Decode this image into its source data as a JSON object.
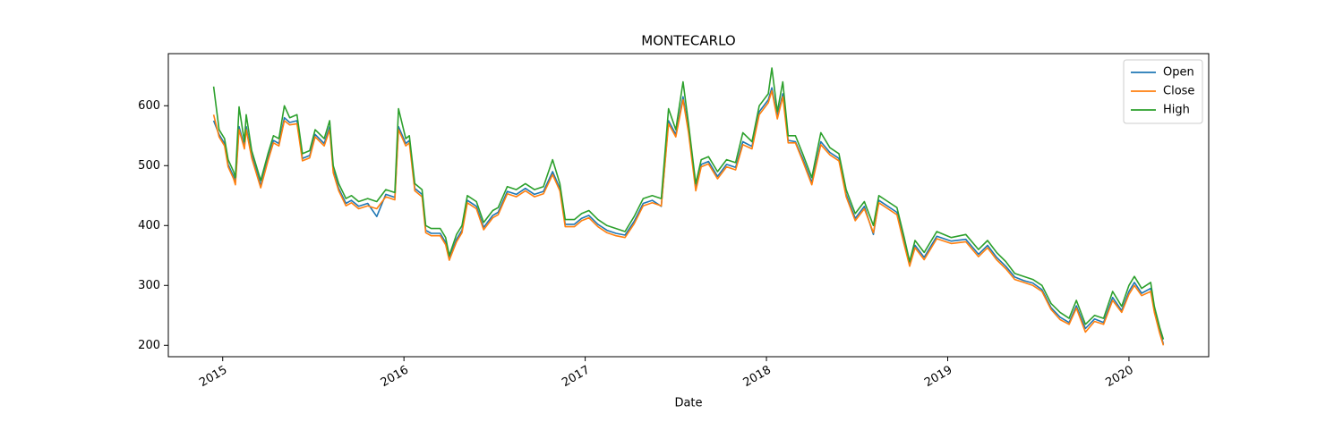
{
  "chart_data": {
    "type": "line",
    "title": "MONTECARLO",
    "xlabel": "Date",
    "x": [
      2014.95,
      2014.98,
      2015.01,
      2015.03,
      2015.06,
      2015.07,
      2015.09,
      2015.12,
      2015.13,
      2015.16,
      2015.21,
      2015.25,
      2015.28,
      2015.31,
      2015.34,
      2015.37,
      2015.41,
      2015.44,
      2015.48,
      2015.51,
      2015.56,
      2015.59,
      2015.61,
      2015.64,
      2015.68,
      2015.71,
      2015.75,
      2015.8,
      2015.85,
      2015.9,
      2015.95,
      2015.97,
      2016.01,
      2016.03,
      2016.06,
      2016.1,
      2016.12,
      2016.15,
      2016.2,
      2016.23,
      2016.25,
      2016.29,
      2016.32,
      2016.35,
      2016.4,
      2016.44,
      2016.49,
      2016.52,
      2016.57,
      2016.62,
      2016.67,
      2016.72,
      2016.77,
      2016.82,
      2016.86,
      2016.89,
      2016.94,
      2016.98,
      2017.02,
      2017.07,
      2017.12,
      2017.17,
      2017.22,
      2017.27,
      2017.32,
      2017.37,
      2017.42,
      2017.46,
      2017.5,
      2017.54,
      2017.57,
      2017.61,
      2017.64,
      2017.68,
      2017.73,
      2017.78,
      2017.83,
      2017.87,
      2017.92,
      2017.96,
      2018.01,
      2018.03,
      2018.06,
      2018.09,
      2018.12,
      2018.16,
      2018.2,
      2018.25,
      2018.3,
      2018.35,
      2018.4,
      2018.44,
      2018.49,
      2018.54,
      2018.59,
      2018.62,
      2018.67,
      2018.72,
      2018.76,
      2018.79,
      2018.82,
      2018.87,
      2018.94,
      2019.02,
      2019.1,
      2019.17,
      2019.22,
      2019.27,
      2019.32,
      2019.37,
      2019.42,
      2019.47,
      2019.52,
      2019.57,
      2019.62,
      2019.67,
      2019.71,
      2019.76,
      2019.81,
      2019.86,
      2019.91,
      2019.96,
      2020.0,
      2020.03,
      2020.07,
      2020.12,
      2020.14,
      2020.17,
      2020.19
    ],
    "series": [
      {
        "name": "Open",
        "color": "#1f77b4",
        "values": [
          575,
          552,
          537,
          502,
          482,
          472,
          565,
          532,
          565,
          517,
          467,
          512,
          542,
          537,
          580,
          572,
          575,
          512,
          517,
          552,
          537,
          565,
          492,
          462,
          437,
          442,
          432,
          437,
          415,
          452,
          447,
          565,
          537,
          542,
          462,
          452,
          392,
          387,
          387,
          372,
          345,
          377,
          392,
          442,
          432,
          397,
          417,
          422,
          457,
          452,
          462,
          452,
          457,
          490,
          462,
          402,
          402,
          412,
          417,
          402,
          392,
          387,
          384,
          407,
          437,
          442,
          432,
          575,
          552,
          615,
          560,
          462,
          502,
          507,
          482,
          502,
          497,
          540,
          532,
          590,
          610,
          630,
          582,
          620,
          542,
          540,
          512,
          472,
          540,
          522,
          512,
          452,
          412,
          432,
          385,
          442,
          432,
          422,
          372,
          335,
          367,
          347,
          382,
          374,
          377,
          352,
          367,
          347,
          332,
          314,
          308,
          304,
          293,
          263,
          247,
          238,
          266,
          228,
          244,
          238,
          280,
          258,
          290,
          305,
          287,
          295,
          258,
          224,
          202
        ]
      },
      {
        "name": "Close",
        "color": "#ff7f0e",
        "values": [
          585,
          548,
          533,
          498,
          478,
          468,
          560,
          528,
          560,
          513,
          463,
          508,
          538,
          533,
          575,
          568,
          570,
          508,
          513,
          548,
          533,
          560,
          488,
          458,
          433,
          438,
          428,
          433,
          428,
          448,
          443,
          560,
          533,
          538,
          458,
          448,
          388,
          383,
          383,
          368,
          342,
          373,
          388,
          438,
          428,
          393,
          413,
          418,
          453,
          448,
          458,
          448,
          453,
          485,
          458,
          398,
          398,
          408,
          413,
          398,
          388,
          383,
          380,
          403,
          433,
          438,
          433,
          570,
          548,
          610,
          555,
          458,
          498,
          503,
          478,
          498,
          493,
          535,
          528,
          585,
          605,
          625,
          578,
          615,
          538,
          538,
          508,
          468,
          535,
          518,
          508,
          448,
          408,
          428,
          388,
          438,
          428,
          418,
          368,
          332,
          363,
          343,
          378,
          370,
          373,
          348,
          363,
          343,
          328,
          310,
          305,
          300,
          290,
          260,
          243,
          235,
          262,
          222,
          240,
          235,
          275,
          255,
          285,
          300,
          283,
          290,
          255,
          220,
          200
        ]
      },
      {
        "name": "High",
        "color": "#2ca02c",
        "values": [
          632,
          560,
          545,
          510,
          490,
          480,
          598,
          540,
          585,
          525,
          475,
          520,
          550,
          545,
          600,
          580,
          585,
          520,
          525,
          560,
          545,
          575,
          500,
          470,
          445,
          450,
          440,
          445,
          440,
          460,
          455,
          595,
          545,
          550,
          470,
          460,
          400,
          395,
          395,
          380,
          350,
          385,
          400,
          450,
          440,
          405,
          425,
          430,
          465,
          460,
          470,
          460,
          465,
          510,
          470,
          410,
          410,
          420,
          425,
          410,
          400,
          395,
          390,
          415,
          445,
          450,
          445,
          595,
          560,
          640,
          570,
          470,
          510,
          515,
          490,
          510,
          505,
          555,
          540,
          600,
          620,
          663,
          590,
          640,
          550,
          550,
          520,
          480,
          555,
          530,
          520,
          460,
          420,
          440,
          400,
          450,
          440,
          430,
          380,
          340,
          375,
          355,
          390,
          380,
          385,
          360,
          375,
          355,
          340,
          320,
          315,
          310,
          300,
          270,
          255,
          245,
          275,
          235,
          250,
          245,
          290,
          265,
          300,
          315,
          295,
          305,
          265,
          230,
          210
        ]
      }
    ],
    "xlim": [
      2014.7,
      2020.44
    ],
    "xticks": [
      2015,
      2016,
      2017,
      2018,
      2019,
      2020
    ],
    "ylim": [
      181,
      687
    ],
    "yticks": [
      200,
      300,
      400,
      500,
      600
    ],
    "legend": "upper right"
  }
}
